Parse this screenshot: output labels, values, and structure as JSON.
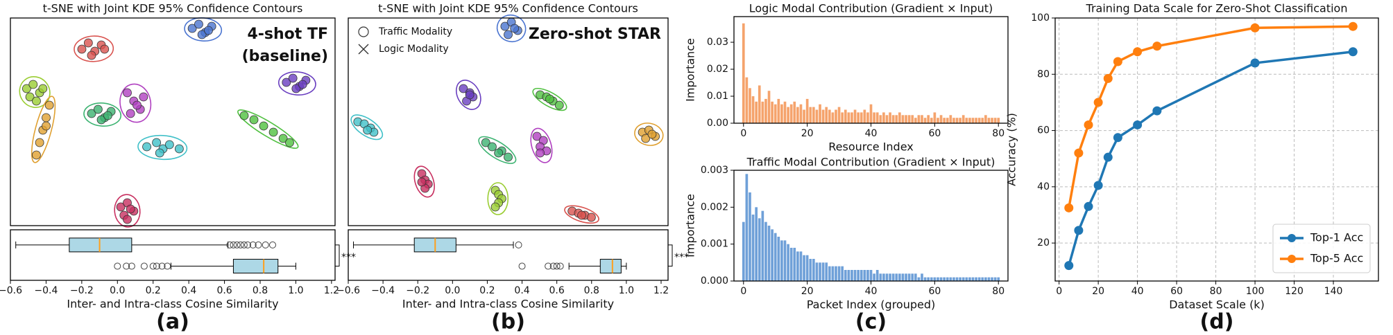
{
  "chart_data": [
    {
      "type": "scatter",
      "title": "t-SNE with Joint KDE 95% Confidence Contours",
      "annotations": [
        "4-shot TF",
        "(baseline)"
      ],
      "xlim": [
        0,
        100
      ],
      "ylim": [
        0,
        100
      ],
      "series": [
        {
          "color": "#d9534f",
          "x": [
            22,
            24,
            26,
            28,
            29,
            25
          ],
          "y": [
            85,
            88,
            84,
            87,
            85,
            82
          ]
        },
        {
          "color": "#4a74d0",
          "x": [
            56,
            58,
            60,
            62,
            59,
            61
          ],
          "y": [
            95,
            97,
            93,
            96,
            92,
            94
          ]
        },
        {
          "color": "#6a3fc0",
          "x": [
            85,
            87,
            89,
            91,
            88,
            90
          ],
          "y": [
            69,
            71,
            67,
            70,
            66,
            68
          ]
        },
        {
          "color": "#9acd32",
          "x": [
            5,
            7,
            9,
            10,
            6,
            8
          ],
          "y": [
            66,
            68,
            64,
            66,
            62,
            60
          ]
        },
        {
          "color": "#e0a030",
          "x": [
            12,
            11,
            10,
            9,
            8,
            11
          ],
          "y": [
            58,
            52,
            46,
            40,
            34,
            48
          ]
        },
        {
          "color": "#3cb371",
          "x": [
            25,
            27,
            29,
            31,
            28,
            30
          ],
          "y": [
            54,
            56,
            52,
            55,
            51,
            53
          ]
        },
        {
          "color": "#b040c0",
          "x": [
            36,
            38,
            40,
            37,
            39,
            41
          ],
          "y": [
            64,
            60,
            56,
            54,
            58,
            62
          ]
        },
        {
          "color": "#50c040",
          "x": [
            72,
            75,
            78,
            81,
            84,
            86
          ],
          "y": [
            53,
            51,
            48,
            45,
            42,
            40
          ]
        },
        {
          "color": "#40c0c8",
          "x": [
            42,
            45,
            47,
            49,
            52,
            46
          ],
          "y": [
            38,
            40,
            37,
            39,
            37,
            35
          ]
        },
        {
          "color": "#c83060",
          "x": [
            34,
            36,
            38,
            35,
            37,
            36
          ],
          "y": [
            9,
            11,
            7,
            5,
            8,
            3
          ]
        }
      ]
    },
    {
      "type": "box",
      "xlabel": "Inter- and Intra-class Cosine Similarity",
      "annotation": "***",
      "panel_label": "(a)",
      "xlim": [
        -0.6,
        1.22
      ],
      "xticks": [
        {
          "value": -0.6,
          "label": "−0.6"
        },
        {
          "value": -0.4,
          "label": "−0.4"
        },
        {
          "value": -0.2,
          "label": "−0.2"
        },
        {
          "value": 0,
          "label": "0.0"
        },
        0.2,
        0.4,
        0.6,
        0.8,
        {
          "value": 1,
          "label": "1.0"
        },
        1.2
      ],
      "color": "#add8e6",
      "median_color": "#ff9f1c",
      "boxes": [
        {
          "whislo": -0.57,
          "q1": -0.27,
          "med": -0.1,
          "q3": 0.08,
          "whishi": 0.62,
          "fliers": [
            0.63,
            0.65,
            0.67,
            0.69,
            0.71,
            0.73,
            0.76,
            0.79,
            0.83,
            0.87
          ]
        },
        {
          "whislo": 0.3,
          "q1": 0.65,
          "med": 0.82,
          "q3": 0.9,
          "whishi": 1.0,
          "fliers": [
            0.0,
            0.05,
            0.08,
            0.15,
            0.2,
            0.22,
            0.25,
            0.28
          ]
        }
      ]
    },
    {
      "type": "scatter",
      "title": "t-SNE with Joint KDE 95% Confidence Contours",
      "annotations": [
        "Zero-shot STAR"
      ],
      "legend_labels": [
        "Traffic Modality",
        "Logic Modality"
      ],
      "xlim": [
        0,
        100
      ],
      "ylim": [
        0,
        100
      ],
      "series": [
        {
          "color": "#4a74d0",
          "x": [
            49,
            51,
            53,
            50,
            52
          ],
          "y": [
            96,
            98,
            94,
            92,
            95
          ]
        },
        {
          "color": "#6a3fc0",
          "x": [
            36,
            38,
            39,
            37,
            38
          ],
          "y": [
            66,
            64,
            62,
            60,
            63
          ]
        },
        {
          "color": "#50c040",
          "x": [
            60,
            62,
            64,
            66,
            63
          ],
          "y": [
            63,
            62,
            60,
            58,
            61
          ]
        },
        {
          "color": "#40c0c8",
          "x": [
            3,
            5,
            7,
            8,
            6
          ],
          "y": [
            50,
            49,
            47,
            45,
            46
          ]
        },
        {
          "color": "#e0a030",
          "x": [
            92,
            94,
            96,
            93,
            95
          ],
          "y": [
            45,
            46,
            43,
            42,
            44
          ]
        },
        {
          "color": "#3cb371",
          "x": [
            43,
            45,
            48,
            50,
            47
          ],
          "y": [
            40,
            38,
            36,
            33,
            35
          ]
        },
        {
          "color": "#b040c0",
          "x": [
            59,
            61,
            60,
            62,
            60
          ],
          "y": [
            43,
            41,
            38,
            36,
            35
          ]
        },
        {
          "color": "#c83060",
          "x": [
            23,
            24,
            25,
            24,
            23
          ],
          "y": [
            25,
            22,
            20,
            18,
            21
          ]
        },
        {
          "color": "#9acd32",
          "x": [
            46,
            47,
            48,
            47,
            46
          ],
          "y": [
            17,
            15,
            13,
            11,
            9
          ]
        },
        {
          "color": "#d9534f",
          "x": [
            70,
            72,
            74,
            76,
            73
          ],
          "y": [
            7,
            6,
            5,
            4,
            5
          ]
        }
      ]
    },
    {
      "type": "box",
      "xlabel": "Inter- and Intra-class Cosine Similarity",
      "annotation": "***",
      "panel_label": "(b)",
      "xlim": [
        -0.6,
        1.24
      ],
      "xticks": [
        {
          "value": -0.6,
          "label": "−0.6"
        },
        {
          "value": -0.4,
          "label": "−0.4"
        },
        {
          "value": -0.2,
          "label": "−0.2"
        },
        {
          "value": 0,
          "label": "0.0"
        },
        0.2,
        0.4,
        0.6,
        0.8,
        {
          "value": 1,
          "label": "1.0"
        },
        1.2
      ],
      "color": "#add8e6",
      "median_color": "#ff9f1c",
      "boxes": [
        {
          "whislo": -0.57,
          "q1": -0.22,
          "med": -0.1,
          "q3": 0.02,
          "whishi": 0.35,
          "fliers": [
            0.38
          ]
        },
        {
          "whislo": 0.67,
          "q1": 0.85,
          "med": 0.92,
          "q3": 0.97,
          "whishi": 1.0,
          "fliers": [
            0.4,
            0.55,
            0.58,
            0.6,
            0.62
          ]
        }
      ]
    },
    {
      "type": "bar",
      "title": "Logic Modal Contribution (Gradient × Input)",
      "xlabel": "Resource Index",
      "ylabel": "Importance",
      "color": "#f5a36c",
      "xlim": [
        -3,
        83
      ],
      "ylim": [
        0,
        0.0395
      ],
      "xticks": [
        0,
        20,
        40,
        60,
        80
      ],
      "yticks": [
        {
          "value": 0,
          "label": "0.00"
        },
        0.01,
        0.02,
        0.03
      ],
      "x": [
        0,
        1,
        2,
        3,
        4,
        5,
        6,
        7,
        8,
        9,
        10,
        11,
        12,
        13,
        14,
        15,
        16,
        17,
        18,
        19,
        20,
        21,
        22,
        23,
        24,
        25,
        26,
        27,
        28,
        29,
        30,
        31,
        32,
        33,
        34,
        35,
        36,
        37,
        38,
        39,
        40,
        41,
        42,
        43,
        44,
        45,
        46,
        47,
        48,
        49,
        50,
        51,
        52,
        53,
        54,
        55,
        56,
        57,
        58,
        59,
        60,
        61,
        62,
        63,
        64,
        65,
        66,
        67,
        68,
        69,
        70,
        71,
        72,
        73,
        74,
        75,
        76,
        77,
        78,
        79,
        80
      ],
      "values": [
        0.037,
        0.017,
        0.013,
        0.01,
        0.008,
        0.014,
        0.008,
        0.009,
        0.012,
        0.008,
        0.007,
        0.009,
        0.007,
        0.008,
        0.006,
        0.007,
        0.008,
        0.006,
        0.007,
        0.005,
        0.009,
        0.006,
        0.006,
        0.005,
        0.007,
        0.005,
        0.006,
        0.005,
        0.004,
        0.005,
        0.006,
        0.004,
        0.005,
        0.004,
        0.004,
        0.005,
        0.004,
        0.004,
        0.005,
        0.004,
        0.007,
        0.004,
        0.004,
        0.003,
        0.004,
        0.003,
        0.004,
        0.003,
        0.003,
        0.004,
        0.003,
        0.003,
        0.003,
        0.003,
        0.002,
        0.003,
        0.003,
        0.002,
        0.003,
        0.002,
        0.004,
        0.002,
        0.003,
        0.002,
        0.002,
        0.003,
        0.002,
        0.002,
        0.002,
        0.003,
        0.002,
        0.002,
        0.002,
        0.002,
        0.002,
        0.002,
        0.003,
        0.002,
        0.002,
        0.002,
        0.002
      ]
    },
    {
      "type": "bar",
      "title": "Traffic Modal Contribution (Gradient × Input)",
      "xlabel": "Packet Index (grouped)",
      "ylabel": "Importance",
      "panel_label": "(c)",
      "color": "#6fa0d8",
      "xlim": [
        -3,
        83
      ],
      "ylim": [
        0,
        0.003
      ],
      "xticks": [
        0,
        20,
        40,
        60,
        80
      ],
      "yticks": [
        {
          "value": 0,
          "label": "0.000"
        },
        0.001,
        0.002,
        0.003
      ],
      "x": [
        0,
        1,
        2,
        3,
        4,
        5,
        6,
        7,
        8,
        9,
        10,
        11,
        12,
        13,
        14,
        15,
        16,
        17,
        18,
        19,
        20,
        21,
        22,
        23,
        24,
        25,
        26,
        27,
        28,
        29,
        30,
        31,
        32,
        33,
        34,
        35,
        36,
        37,
        38,
        39,
        40,
        41,
        42,
        43,
        44,
        45,
        46,
        47,
        48,
        49,
        50,
        51,
        52,
        53,
        54,
        55,
        56,
        57,
        58,
        59,
        60,
        61,
        62,
        63,
        64,
        65,
        66,
        67,
        68,
        69,
        70,
        71,
        72,
        73,
        74,
        75,
        76,
        77,
        78,
        79,
        80
      ],
      "values": [
        0.0016,
        0.0029,
        0.0024,
        0.0018,
        0.002,
        0.0017,
        0.0019,
        0.0016,
        0.0015,
        0.0014,
        0.0013,
        0.0012,
        0.0011,
        0.0011,
        0.001,
        0.0009,
        0.0009,
        0.0008,
        0.0008,
        0.0007,
        0.0007,
        0.0006,
        0.0006,
        0.0005,
        0.0005,
        0.0005,
        0.0005,
        0.0004,
        0.0004,
        0.0004,
        0.0004,
        0.0004,
        0.0003,
        0.0003,
        0.0003,
        0.0003,
        0.0003,
        0.0003,
        0.0003,
        0.0003,
        0.0003,
        0.0002,
        0.0003,
        0.0002,
        0.0002,
        0.0002,
        0.0002,
        0.0002,
        0.0002,
        0.0002,
        0.0002,
        0.0002,
        0.0002,
        0.0002,
        0.0002,
        0.0001,
        0.0002,
        0.0001,
        0.0001,
        0.0001,
        0.0001,
        0.0001,
        0.0001,
        0.0001,
        0.0001,
        0.0001,
        0.0001,
        0.0001,
        0.0001,
        0.0001,
        0.0001,
        0.0001,
        0.0001,
        0.0001,
        0.0001,
        0.0001,
        0.0001,
        0.0001,
        0.0001,
        0.0001,
        0.0001
      ]
    },
    {
      "type": "line",
      "title": "Training Data Scale for Zero-Shot Classification",
      "xlabel": "Dataset Scale (k)",
      "ylabel": "Accuracy (%)",
      "panel_label": "(d)",
      "grid": true,
      "legend": "lower right",
      "xlim": [
        -2,
        163
      ],
      "ylim": [
        6.5,
        100
      ],
      "xticks": [
        0,
        20,
        40,
        60,
        80,
        100,
        120,
        140
      ],
      "yticks": [
        20,
        40,
        60,
        80,
        100
      ],
      "x": [
        5,
        10,
        15,
        20,
        25,
        30,
        40,
        50,
        100,
        150
      ],
      "series": [
        {
          "name": "Top-1 Acc",
          "color": "#1f77b4",
          "values": [
            12,
            24.5,
            33,
            40.5,
            50.5,
            57.5,
            62,
            67,
            84,
            88
          ]
        },
        {
          "name": "Top-5 Acc",
          "color": "#ff7f0e",
          "values": [
            32.5,
            52,
            62,
            70,
            78.5,
            84.5,
            88,
            90,
            96.5,
            97
          ]
        }
      ]
    }
  ]
}
